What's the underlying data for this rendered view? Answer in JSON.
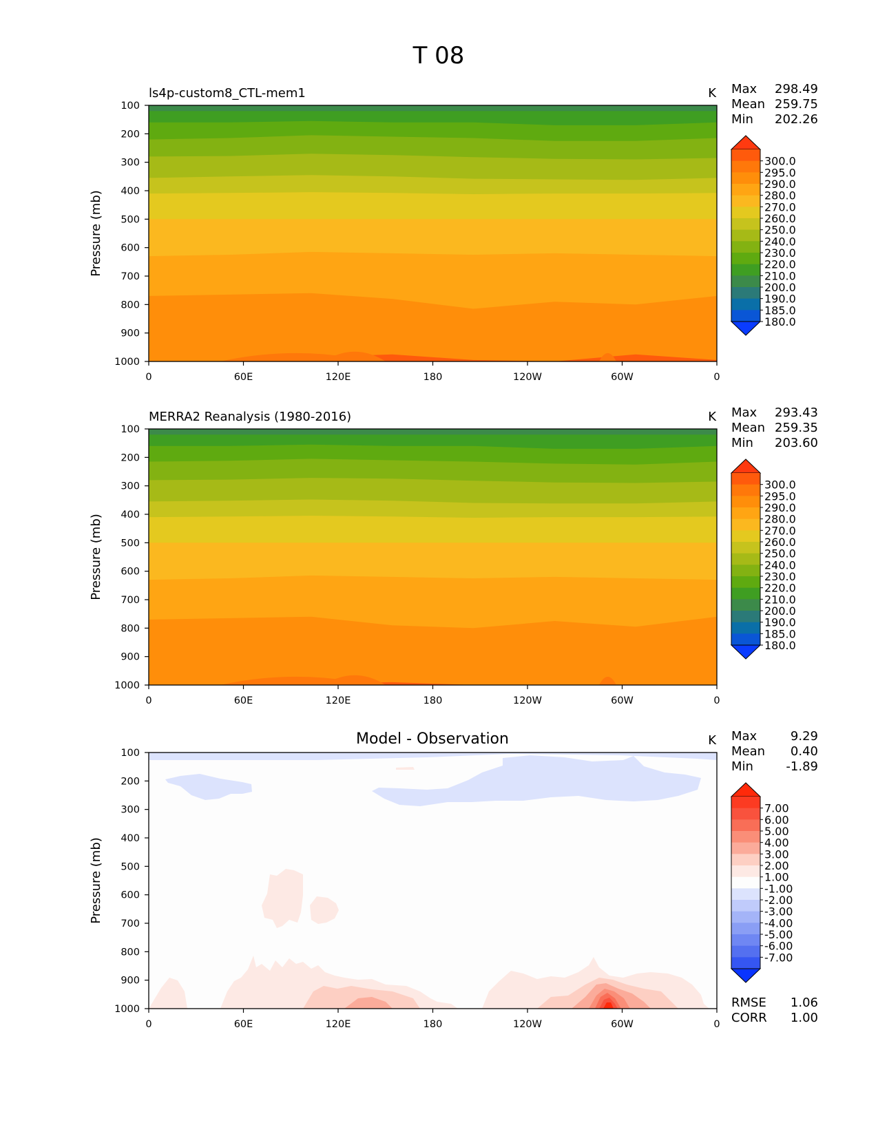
{
  "figure_title": "T 08",
  "chart_data": [
    {
      "type": "contour",
      "title": "ls4p-custom8_CTL-mem1",
      "units": "K",
      "ylabel": "Pressure (mb)",
      "x_ticks": [
        "0",
        "60E",
        "120E",
        "180",
        "120W",
        "60W",
        "0"
      ],
      "y_ticks": [
        "100",
        "200",
        "300",
        "400",
        "500",
        "600",
        "700",
        "800",
        "900",
        "1000"
      ],
      "ylim": [
        1000,
        100
      ],
      "stats": {
        "max_label": "Max",
        "max": "298.49",
        "mean_label": "Mean",
        "mean": "259.75",
        "min_label": "Min",
        "min": "202.26"
      },
      "colorbar": [
        "300.0",
        "295.0",
        "290.0",
        "280.0",
        "270.0",
        "260.0",
        "250.0",
        "240.0",
        "230.0",
        "220.0",
        "210.0",
        "200.0",
        "190.0",
        "185.0",
        "180.0"
      ],
      "colors": [
        "#ff3a10",
        "#ff5a0c",
        "#ff780a",
        "#ff8e0a",
        "#ffa513",
        "#fbb81f",
        "#e4c91f",
        "#c6c31d",
        "#a6ba17",
        "#83b212",
        "#5faa10",
        "#3f9e22",
        "#3c8a4a",
        "#2b7a78",
        "#0a6fa8",
        "#0a56d6",
        "#0a3cff"
      ],
      "bands": [
        {
          "temp": "210.0-220.0",
          "p_top": 100,
          "p_bottom": [
            160,
            160,
            155,
            160,
            160,
            170,
            170,
            160
          ]
        },
        {
          "temp": "220.0-230.0",
          "p_top": null,
          "p_bottom": [
            220,
            215,
            205,
            210,
            215,
            225,
            225,
            215
          ]
        },
        {
          "temp": "230.0-240.0",
          "p_top": null,
          "p_bottom": [
            280,
            278,
            270,
            275,
            282,
            288,
            290,
            285
          ]
        },
        {
          "temp": "240.0-250.0",
          "p_top": null,
          "p_bottom": [
            355,
            350,
            345,
            350,
            358,
            360,
            362,
            355
          ]
        },
        {
          "temp": "250.0-260.0",
          "p_top": null,
          "p_bottom": [
            410,
            408,
            405,
            408,
            412,
            410,
            410,
            408
          ]
        },
        {
          "temp": "260.0-270.0",
          "p_top": null,
          "p_bottom": [
            500,
            500,
            500,
            500,
            500,
            500,
            500,
            500
          ]
        },
        {
          "temp": "270.0-280.0",
          "p_top": null,
          "p_bottom": [
            630,
            625,
            615,
            620,
            625,
            620,
            625,
            630
          ]
        },
        {
          "temp": "280.0-290.0",
          "p_top": null,
          "p_bottom": [
            770,
            765,
            760,
            780,
            815,
            790,
            800,
            770
          ]
        },
        {
          "temp": "290.0-295.0",
          "p_top": null,
          "p_bottom": [
            1000,
            1000,
            985,
            975,
            995,
            1000,
            975,
            995
          ]
        }
      ]
    },
    {
      "type": "contour",
      "title": "MERRA2 Reanalysis (1980-2016)",
      "units": "K",
      "ylabel": "Pressure (mb)",
      "x_ticks": [
        "0",
        "60E",
        "120E",
        "180",
        "120W",
        "60W",
        "0"
      ],
      "y_ticks": [
        "100",
        "200",
        "300",
        "400",
        "500",
        "600",
        "700",
        "800",
        "900",
        "1000"
      ],
      "ylim": [
        1000,
        100
      ],
      "stats": {
        "max_label": "Max",
        "max": "293.43",
        "mean_label": "Mean",
        "mean": "259.35",
        "min_label": "Min",
        "min": "203.60"
      },
      "colorbar": [
        "300.0",
        "295.0",
        "290.0",
        "280.0",
        "270.0",
        "260.0",
        "250.0",
        "240.0",
        "230.0",
        "220.0",
        "210.0",
        "200.0",
        "190.0",
        "185.0",
        "180.0"
      ],
      "colors": [
        "#ff3a10",
        "#ff5a0c",
        "#ff780a",
        "#ff8e0a",
        "#ffa513",
        "#fbb81f",
        "#e4c91f",
        "#c6c31d",
        "#a6ba17",
        "#83b212",
        "#5faa10",
        "#3f9e22",
        "#3c8a4a",
        "#2b7a78",
        "#0a6fa8",
        "#0a56d6",
        "#0a3cff"
      ],
      "bands": [
        {
          "temp": "210.0-220.0",
          "p_top": 100,
          "p_bottom": [
            160,
            160,
            155,
            160,
            160,
            170,
            170,
            160
          ]
        },
        {
          "temp": "220.0-230.0",
          "p_top": null,
          "p_bottom": [
            215,
            212,
            205,
            210,
            215,
            222,
            225,
            215
          ]
        },
        {
          "temp": "230.0-240.0",
          "p_top": null,
          "p_bottom": [
            280,
            278,
            272,
            275,
            282,
            288,
            290,
            285
          ]
        },
        {
          "temp": "240.0-250.0",
          "p_top": null,
          "p_bottom": [
            355,
            352,
            348,
            352,
            360,
            362,
            362,
            355
          ]
        },
        {
          "temp": "250.0-260.0",
          "p_top": null,
          "p_bottom": [
            410,
            408,
            405,
            408,
            412,
            410,
            410,
            408
          ]
        },
        {
          "temp": "260.0-270.0",
          "p_top": null,
          "p_bottom": [
            500,
            500,
            500,
            500,
            500,
            500,
            500,
            500
          ]
        },
        {
          "temp": "270.0-280.0",
          "p_top": null,
          "p_bottom": [
            630,
            625,
            615,
            620,
            625,
            620,
            625,
            630
          ]
        },
        {
          "temp": "280.0-290.0",
          "p_top": null,
          "p_bottom": [
            770,
            765,
            760,
            790,
            800,
            775,
            795,
            760
          ]
        },
        {
          "temp": "290.0-295.0",
          "p_top": null,
          "p_bottom": [
            1000,
            1000,
            995,
            990,
            1000,
            1000,
            998,
            1000
          ]
        }
      ]
    },
    {
      "type": "contour",
      "title": "Model - Observation",
      "units": "K",
      "ylabel": "Pressure (mb)",
      "x_ticks": [
        "0",
        "60E",
        "120E",
        "180",
        "120W",
        "60W",
        "0"
      ],
      "y_ticks": [
        "100",
        "200",
        "300",
        "400",
        "500",
        "600",
        "700",
        "800",
        "900",
        "1000"
      ],
      "ylim": [
        1000,
        100
      ],
      "stats": {
        "max_label": "Max",
        "max": "9.29",
        "mean_label": "Mean",
        "mean": "0.40",
        "min_label": "Min",
        "min": "-1.89"
      },
      "colorbar": [
        "7.00",
        "6.00",
        "5.00",
        "4.00",
        "3.00",
        "2.00",
        "1.00",
        "-1.00",
        "-2.00",
        "-3.00",
        "-4.00",
        "-5.00",
        "-6.00",
        "-7.00"
      ],
      "colors": [
        "#ff2a0a",
        "#fc3b22",
        "#f9523d",
        "#f96e57",
        "#fa8e78",
        "#fbab9a",
        "#fdcfc3",
        "#fde9e4",
        "#fdfdfd",
        "#dce3fd",
        "#c0cbfb",
        "#a4b4f8",
        "#8a9ef5",
        "#6f87f3",
        "#5470f0",
        "#3556f2",
        "#0a34ff"
      ],
      "regions": [
        "negative -2 to -1 near 100-300 mb",
        "positive 1-2 near 500-700 mb",
        "positive up to 7+ near surface at 60W"
      ],
      "rmse_label": "RMSE",
      "rmse": "1.06",
      "corr_label": "CORR",
      "corr": "1.00"
    }
  ]
}
